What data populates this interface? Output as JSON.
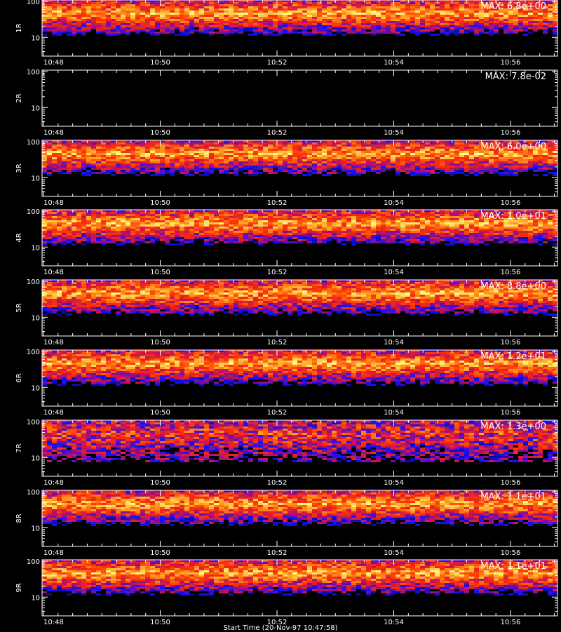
{
  "chart_data": {
    "type": "heatmap",
    "x_ticks": [
      "10:48",
      "10:50",
      "10:52",
      "10:54",
      "10:56"
    ],
    "y_ticks": [
      "10",
      "100"
    ],
    "ylim": [
      3,
      110
    ],
    "y_scale": "log",
    "colormap": [
      "#000000",
      "#1010ff",
      "#c01060",
      "#ff3300",
      "#ffa020",
      "#ffff80"
    ],
    "panels": [
      {
        "label": "1R",
        "max_text": "MAX: 6.8e+00",
        "max": 6.8,
        "band": [
          30,
          100
        ]
      },
      {
        "label": "2R",
        "max_text": "MAX: 7.8e-02",
        "max": 0.078,
        "band": []
      },
      {
        "label": "3R",
        "max_text": "MAX: 6.0e+00",
        "max": 6.0,
        "band": [
          30,
          100
        ]
      },
      {
        "label": "4R",
        "max_text": "MAX: 1.0e+01",
        "max": 10.0,
        "band": [
          30,
          100
        ]
      },
      {
        "label": "5R",
        "max_text": "MAX: 8.8e+00",
        "max": 8.8,
        "band": [
          30,
          100
        ]
      },
      {
        "label": "6R",
        "max_text": "MAX: 1.2e+01",
        "max": 12.0,
        "band": [
          30,
          100
        ]
      },
      {
        "label": "7R",
        "max_text": "MAX: 1.3e+00",
        "max": 1.3,
        "band": [
          8,
          100
        ]
      },
      {
        "label": "8R",
        "max_text": "MAX: 1.1e+01",
        "max": 11.0,
        "band": [
          30,
          100
        ]
      },
      {
        "label": "9R",
        "max_text": "MAX: 1.1e+01",
        "max": 11.0,
        "band": [
          30,
          100
        ]
      }
    ]
  },
  "footer_text": "Start Time (20-Nov-97 10:47:58)"
}
